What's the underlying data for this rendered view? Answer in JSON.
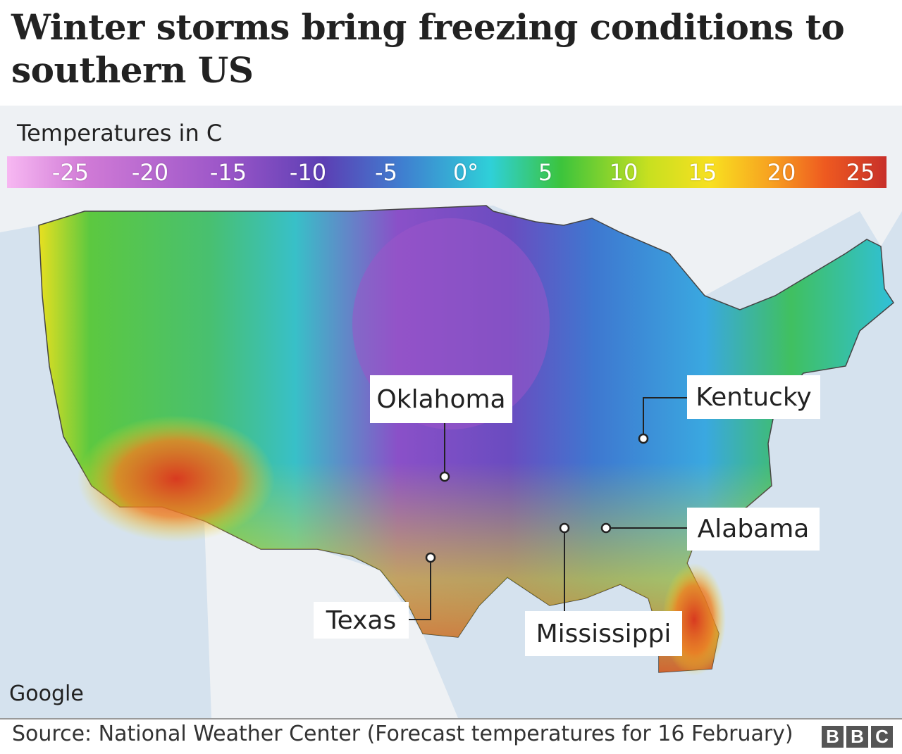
{
  "title": "Winter storms bring freezing conditions to southern US",
  "legend": {
    "title": "Temperatures in C",
    "labels": [
      "-25",
      "-20",
      "-15",
      "-10",
      "-5",
      "0°",
      "5",
      "10",
      "15",
      "20",
      "25"
    ]
  },
  "callouts": {
    "oklahoma": "Oklahoma",
    "kentucky": "Kentucky",
    "alabama": "Alabama",
    "mississippi": "Mississippi",
    "texas": "Texas"
  },
  "map_attribution": "Google",
  "source": "Source: National Weather Center (Forecast temperatures for 16 February)",
  "logo": [
    "B",
    "B",
    "C"
  ],
  "colors": {
    "cold": "#9a55c8",
    "freezing": "#2fd0d8",
    "mild": "#3cc43c",
    "warm": "#f8e020",
    "hot": "#c8302a",
    "ocean": "#c9d9e8",
    "land": "#e9eef2"
  }
}
